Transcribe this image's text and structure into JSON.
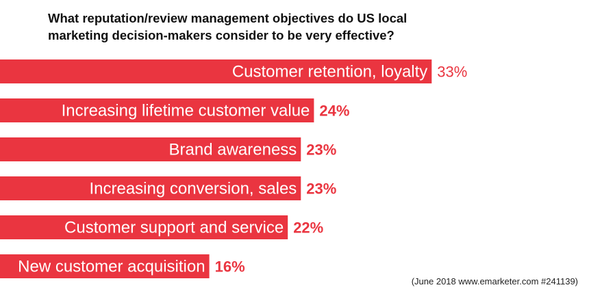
{
  "title_lines": [
    "What reputation/review management objectives do US local",
    "marketing decision-makers consider to be very effective?"
  ],
  "source": "(June 2018  www.emarketer.com  #241139)",
  "colors": {
    "bar": "#ea3540",
    "bar_label": "#ffffff",
    "value_text": "#ea3540"
  },
  "chart_data": {
    "type": "bar",
    "orientation": "horizontal",
    "title": "What reputation/review management objectives do US local marketing decision-makers consider to be very effective?",
    "categories": [
      "Customer retention, loyalty",
      "Increasing lifetime customer value",
      "Brand awareness",
      "Increasing conversion, sales",
      "Customer support and service",
      "New customer acquisition"
    ],
    "values": [
      33,
      24,
      23,
      23,
      22,
      16
    ],
    "value_labels": [
      "33%",
      "24%",
      "23%",
      "23%",
      "22%",
      "16%"
    ],
    "value_label_weights": [
      "normal",
      "bold",
      "bold",
      "bold",
      "bold",
      "bold"
    ],
    "unit": "%",
    "xlabel": "",
    "ylabel": "",
    "grid": false,
    "legend": "none"
  }
}
